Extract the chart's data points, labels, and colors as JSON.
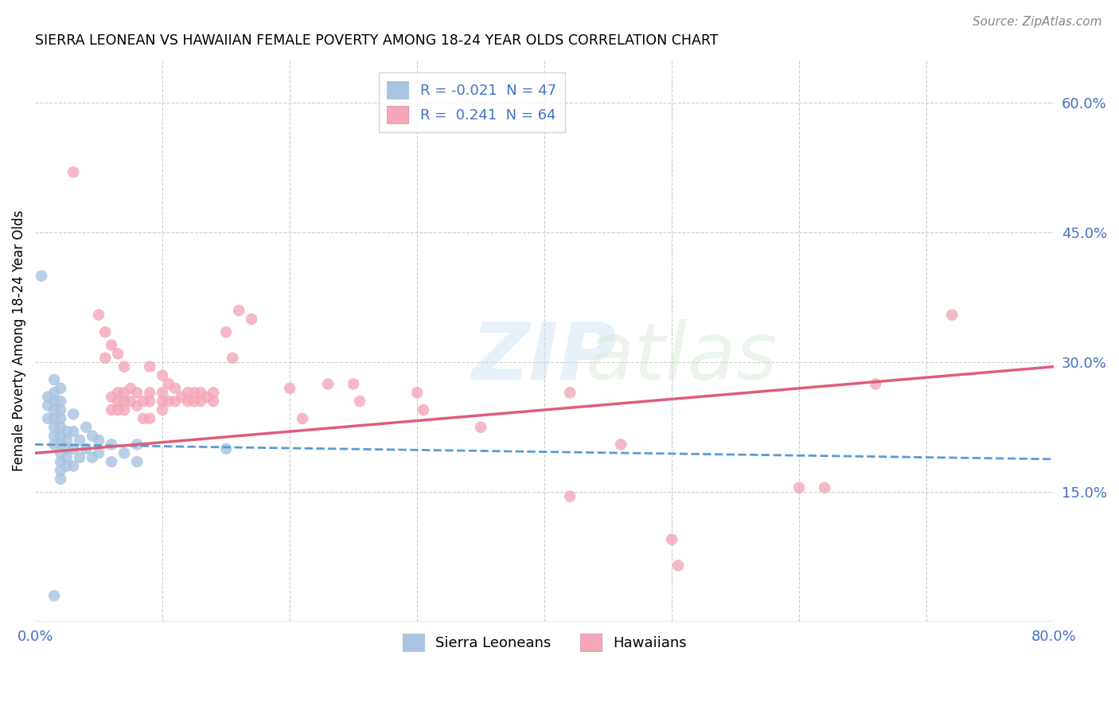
{
  "title": "SIERRA LEONEAN VS HAWAIIAN FEMALE POVERTY AMONG 18-24 YEAR OLDS CORRELATION CHART",
  "source": "Source: ZipAtlas.com",
  "ylabel": "Female Poverty Among 18-24 Year Olds",
  "xlim": [
    0.0,
    0.8
  ],
  "ylim": [
    0.0,
    0.65
  ],
  "xticks": [
    0.0,
    0.1,
    0.2,
    0.3,
    0.4,
    0.5,
    0.6,
    0.7,
    0.8
  ],
  "xticklabels": [
    "0.0%",
    "",
    "",
    "",
    "",
    "",
    "",
    "",
    "80.0%"
  ],
  "yticks_right": [
    0.0,
    0.15,
    0.3,
    0.45,
    0.6
  ],
  "ytick_labels_right": [
    "",
    "15.0%",
    "30.0%",
    "45.0%",
    "60.0%"
  ],
  "sl_color": "#a8c4e0",
  "hw_color": "#f4a7b9",
  "sl_line_color": "#5b9bd5",
  "hw_line_color": "#e05c7a",
  "sl_R": "-0.021",
  "sl_N": "47",
  "hw_R": "0.241",
  "hw_N": "64",
  "sl_line_x": [
    0.0,
    0.8
  ],
  "sl_line_y": [
    0.205,
    0.188
  ],
  "hw_line_x": [
    0.0,
    0.8
  ],
  "hw_line_y": [
    0.195,
    0.295
  ],
  "sl_points": [
    [
      0.005,
      0.4
    ],
    [
      0.01,
      0.26
    ],
    [
      0.01,
      0.25
    ],
    [
      0.01,
      0.235
    ],
    [
      0.015,
      0.28
    ],
    [
      0.015,
      0.265
    ],
    [
      0.015,
      0.255
    ],
    [
      0.015,
      0.245
    ],
    [
      0.015,
      0.235
    ],
    [
      0.015,
      0.225
    ],
    [
      0.015,
      0.215
    ],
    [
      0.015,
      0.205
    ],
    [
      0.02,
      0.27
    ],
    [
      0.02,
      0.255
    ],
    [
      0.02,
      0.245
    ],
    [
      0.02,
      0.235
    ],
    [
      0.02,
      0.225
    ],
    [
      0.02,
      0.215
    ],
    [
      0.02,
      0.205
    ],
    [
      0.02,
      0.195
    ],
    [
      0.02,
      0.185
    ],
    [
      0.02,
      0.175
    ],
    [
      0.02,
      0.165
    ],
    [
      0.025,
      0.22
    ],
    [
      0.025,
      0.21
    ],
    [
      0.025,
      0.2
    ],
    [
      0.025,
      0.19
    ],
    [
      0.025,
      0.18
    ],
    [
      0.03,
      0.24
    ],
    [
      0.03,
      0.22
    ],
    [
      0.03,
      0.2
    ],
    [
      0.03,
      0.18
    ],
    [
      0.035,
      0.21
    ],
    [
      0.035,
      0.19
    ],
    [
      0.04,
      0.225
    ],
    [
      0.04,
      0.2
    ],
    [
      0.045,
      0.215
    ],
    [
      0.045,
      0.19
    ],
    [
      0.05,
      0.21
    ],
    [
      0.05,
      0.195
    ],
    [
      0.06,
      0.205
    ],
    [
      0.06,
      0.185
    ],
    [
      0.07,
      0.195
    ],
    [
      0.08,
      0.205
    ],
    [
      0.08,
      0.185
    ],
    [
      0.15,
      0.2
    ],
    [
      0.015,
      0.03
    ]
  ],
  "hw_points": [
    [
      0.03,
      0.52
    ],
    [
      0.05,
      0.355
    ],
    [
      0.055,
      0.335
    ],
    [
      0.055,
      0.305
    ],
    [
      0.06,
      0.32
    ],
    [
      0.06,
      0.26
    ],
    [
      0.06,
      0.245
    ],
    [
      0.065,
      0.31
    ],
    [
      0.065,
      0.265
    ],
    [
      0.065,
      0.255
    ],
    [
      0.065,
      0.245
    ],
    [
      0.07,
      0.295
    ],
    [
      0.07,
      0.265
    ],
    [
      0.07,
      0.255
    ],
    [
      0.07,
      0.245
    ],
    [
      0.075,
      0.27
    ],
    [
      0.075,
      0.255
    ],
    [
      0.08,
      0.265
    ],
    [
      0.08,
      0.25
    ],
    [
      0.085,
      0.255
    ],
    [
      0.085,
      0.235
    ],
    [
      0.09,
      0.295
    ],
    [
      0.09,
      0.265
    ],
    [
      0.09,
      0.255
    ],
    [
      0.09,
      0.235
    ],
    [
      0.1,
      0.285
    ],
    [
      0.1,
      0.265
    ],
    [
      0.1,
      0.255
    ],
    [
      0.1,
      0.245
    ],
    [
      0.105,
      0.275
    ],
    [
      0.105,
      0.255
    ],
    [
      0.11,
      0.27
    ],
    [
      0.11,
      0.255
    ],
    [
      0.115,
      0.26
    ],
    [
      0.12,
      0.265
    ],
    [
      0.12,
      0.255
    ],
    [
      0.125,
      0.265
    ],
    [
      0.125,
      0.255
    ],
    [
      0.13,
      0.265
    ],
    [
      0.13,
      0.255
    ],
    [
      0.135,
      0.26
    ],
    [
      0.14,
      0.265
    ],
    [
      0.14,
      0.255
    ],
    [
      0.15,
      0.335
    ],
    [
      0.155,
      0.305
    ],
    [
      0.16,
      0.36
    ],
    [
      0.17,
      0.35
    ],
    [
      0.2,
      0.27
    ],
    [
      0.21,
      0.235
    ],
    [
      0.23,
      0.275
    ],
    [
      0.25,
      0.275
    ],
    [
      0.255,
      0.255
    ],
    [
      0.3,
      0.265
    ],
    [
      0.305,
      0.245
    ],
    [
      0.35,
      0.225
    ],
    [
      0.42,
      0.265
    ],
    [
      0.42,
      0.145
    ],
    [
      0.46,
      0.205
    ],
    [
      0.5,
      0.095
    ],
    [
      0.505,
      0.065
    ],
    [
      0.6,
      0.155
    ],
    [
      0.62,
      0.155
    ],
    [
      0.66,
      0.275
    ],
    [
      0.72,
      0.355
    ]
  ]
}
